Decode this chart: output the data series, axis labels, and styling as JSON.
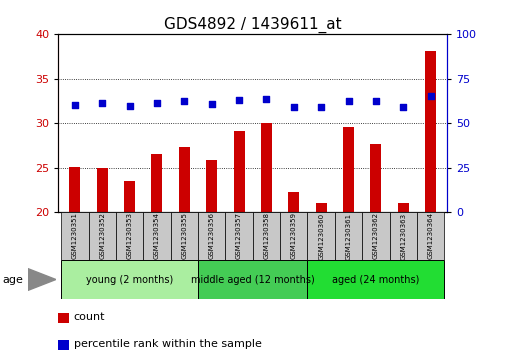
{
  "title": "GDS4892 / 1439611_at",
  "samples": [
    "GSM1230351",
    "GSM1230352",
    "GSM1230353",
    "GSM1230354",
    "GSM1230355",
    "GSM1230356",
    "GSM1230357",
    "GSM1230358",
    "GSM1230359",
    "GSM1230360",
    "GSM1230361",
    "GSM1230362",
    "GSM1230363",
    "GSM1230364"
  ],
  "count_values": [
    25.1,
    25.0,
    23.5,
    26.6,
    27.3,
    25.9,
    29.1,
    30.1,
    22.3,
    21.0,
    29.6,
    27.7,
    21.0,
    38.1
  ],
  "percentile_values": [
    60.5,
    61.5,
    60.0,
    61.5,
    62.5,
    61.0,
    63.0,
    63.5,
    59.5,
    59.0,
    62.5,
    62.5,
    59.5,
    65.5
  ],
  "ylim_left": [
    20,
    40
  ],
  "ylim_right": [
    0,
    100
  ],
  "yticks_left": [
    20,
    25,
    30,
    35,
    40
  ],
  "yticks_right": [
    0,
    25,
    50,
    75,
    100
  ],
  "groups": [
    {
      "label": "young (2 months)",
      "start": 0,
      "end": 5,
      "color": "#AAEEA0"
    },
    {
      "label": "middle aged (12 months)",
      "start": 5,
      "end": 9,
      "color": "#44CC55"
    },
    {
      "label": "aged (24 months)",
      "start": 9,
      "end": 14,
      "color": "#22DD33"
    }
  ],
  "bar_color": "#CC0000",
  "scatter_color": "#0000CC",
  "grid_color": "#000000",
  "title_fontsize": 11,
  "axis_color_left": "#CC0000",
  "axis_color_right": "#0000CC",
  "sample_box_color": "#C8C8C8",
  "age_label": "age",
  "legend_count": "count",
  "legend_percentile": "percentile rank within the sample",
  "bar_width": 0.4
}
